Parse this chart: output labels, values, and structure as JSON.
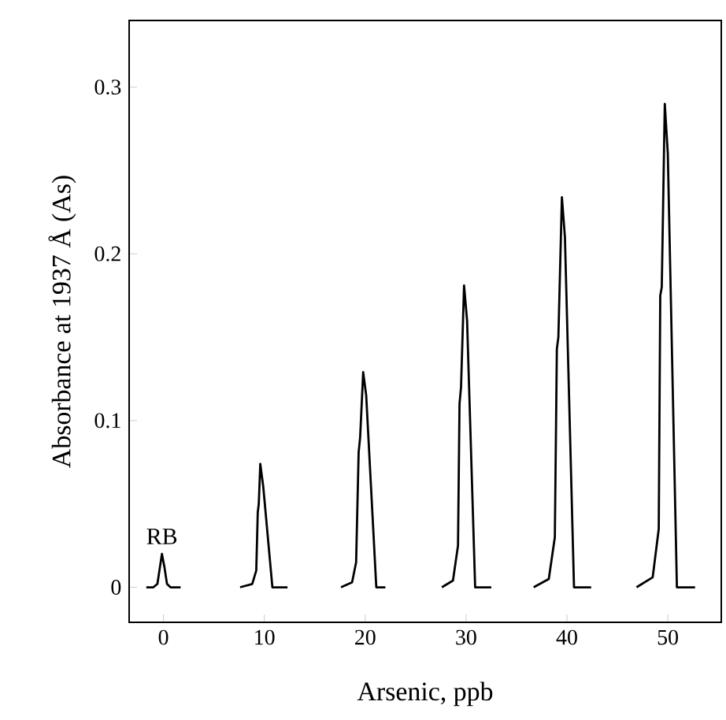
{
  "chart_data": {
    "type": "line",
    "xlabel": "Arsenic, ppb",
    "ylabel": "Absorbance at 1937 Å (As)",
    "xlim": [
      -3.4,
      55.3
    ],
    "ylim": [
      -0.021,
      0.34
    ],
    "xticks": [
      0,
      10,
      20,
      30,
      40,
      50
    ],
    "yticks": [
      0,
      0.1,
      0.2,
      0.3
    ],
    "marker": "none",
    "line_style": "solid",
    "grid": false,
    "annotations": [
      "RB"
    ],
    "series": [
      {
        "color": "#000000",
        "x": [
          -1.7,
          -1.0,
          -0.6,
          -0.35,
          -0.15,
          0.1,
          0.35,
          0.7,
          1.7
        ],
        "values": [
          0,
          0,
          0.002,
          0.012,
          0.02,
          0.012,
          0.002,
          0,
          0
        ]
      },
      {
        "color": "#000000",
        "x": [
          7.6,
          8.8,
          9.2,
          9.35,
          9.45,
          9.6,
          9.9,
          10.8,
          12.3
        ],
        "values": [
          0,
          0.002,
          0.01,
          0.045,
          0.05,
          0.074,
          0.06,
          0,
          0
        ]
      },
      {
        "color": "#000000",
        "x": [
          17.6,
          18.7,
          19.1,
          19.35,
          19.5,
          19.8,
          20.1,
          21.1,
          22.0
        ],
        "values": [
          0,
          0.003,
          0.015,
          0.081,
          0.09,
          0.129,
          0.115,
          0,
          0
        ]
      },
      {
        "color": "#000000",
        "x": [
          27.6,
          28.7,
          29.2,
          29.35,
          29.5,
          29.8,
          30.1,
          30.9,
          32.5
        ],
        "values": [
          0,
          0.004,
          0.025,
          0.11,
          0.12,
          0.181,
          0.16,
          0,
          0
        ]
      },
      {
        "color": "#000000",
        "x": [
          36.7,
          38.2,
          38.8,
          39.0,
          39.15,
          39.5,
          39.8,
          40.7,
          42.4
        ],
        "values": [
          0,
          0.005,
          0.03,
          0.143,
          0.15,
          0.234,
          0.21,
          0,
          0
        ]
      },
      {
        "color": "#000000",
        "x": [
          46.9,
          48.5,
          49.1,
          49.25,
          49.4,
          49.7,
          50.0,
          50.9,
          52.7
        ],
        "values": [
          0,
          0.006,
          0.035,
          0.175,
          0.18,
          0.29,
          0.26,
          0,
          0
        ]
      }
    ]
  }
}
